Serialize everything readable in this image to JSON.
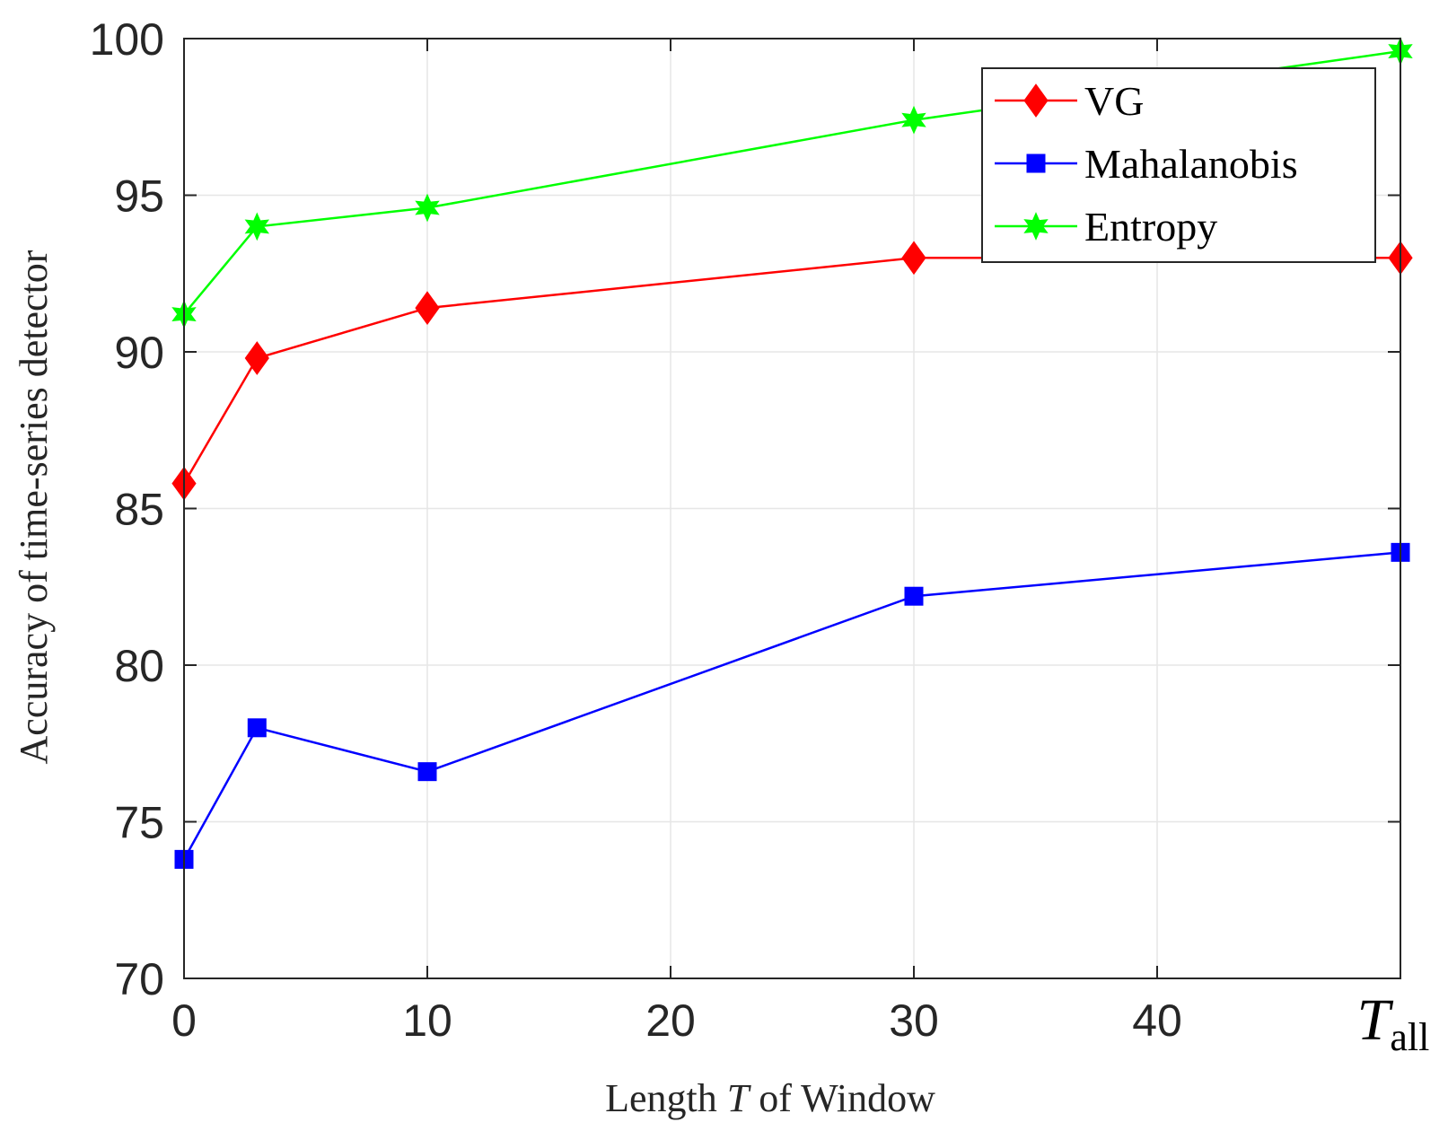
{
  "chart_data": {
    "type": "line",
    "title": "",
    "xlabel_parts": [
      "Length ",
      "T",
      " of Window"
    ],
    "ylabel": "Accuracy of time-series detector",
    "xlim": [
      0,
      50
    ],
    "ylim": [
      70,
      100
    ],
    "grid": true,
    "legend_position": "top-right",
    "x_ticks": [
      0,
      10,
      20,
      30,
      40
    ],
    "x_tick_labels": [
      "0",
      "10",
      "20",
      "30",
      "40"
    ],
    "x_last_tick": {
      "value": 50,
      "label_main": "T",
      "label_sub": "all"
    },
    "y_ticks": [
      70,
      75,
      80,
      85,
      90,
      95,
      100
    ],
    "y_tick_labels": [
      "70",
      "75",
      "80",
      "85",
      "90",
      "95",
      "100"
    ],
    "x": [
      0,
      3,
      10,
      30,
      50
    ],
    "series": [
      {
        "name": "VG",
        "color": "#ff0000",
        "marker": "diamond",
        "values": [
          85.8,
          89.8,
          91.4,
          93.0,
          93.0
        ]
      },
      {
        "name": "Mahalanobis",
        "color": "#0000ff",
        "marker": "square",
        "values": [
          73.8,
          78.0,
          76.6,
          82.2,
          83.6
        ]
      },
      {
        "name": "Entropy",
        "color": "#00ff00",
        "marker": "star",
        "values": [
          91.2,
          94.0,
          94.6,
          97.4,
          99.6
        ]
      }
    ]
  }
}
